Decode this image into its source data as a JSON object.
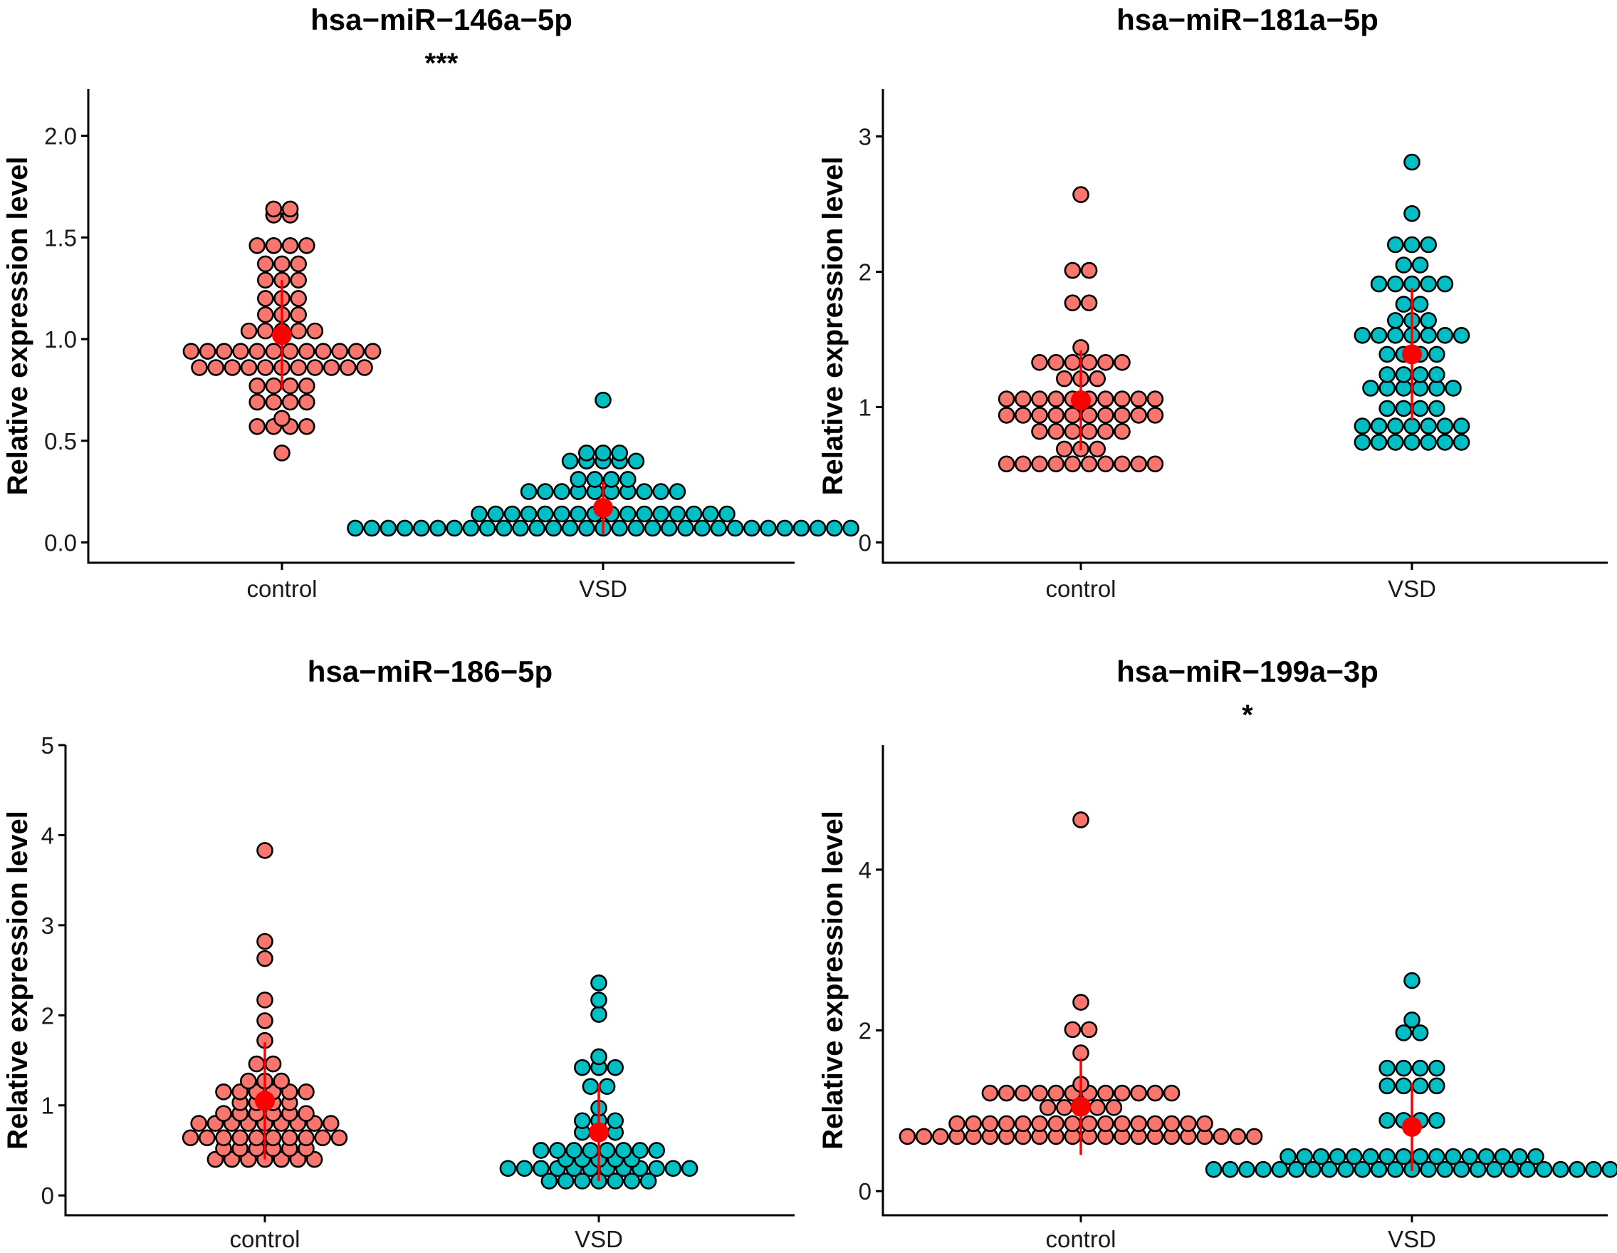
{
  "colors": {
    "control": "#F8766D",
    "VSD": "#00BFC4",
    "summary": "#FF0000"
  },
  "chart_data": [
    {
      "type": "scatter",
      "title": "hsa−miR−146a−5p",
      "significance": "***",
      "ylabel": "Relative expression level",
      "ylim": [
        -0.1,
        2.23
      ],
      "yticks": [
        0.0,
        0.5,
        1.0,
        1.5,
        2.0
      ],
      "yticklabels": [
        "0.0",
        "0.5",
        "1.0",
        "1.5",
        "2.0"
      ],
      "categories": [
        "control",
        "VSD"
      ],
      "dotsize": 0.039,
      "series": [
        {
          "name": "control",
          "mean": 1.02,
          "sd_low": 0.75,
          "sd_high": 1.29,
          "values": [
            0.44,
            0.57,
            0.57,
            0.57,
            0.57,
            0.61,
            0.69,
            0.69,
            0.69,
            0.69,
            0.77,
            0.77,
            0.77,
            0.77,
            0.86,
            0.86,
            0.86,
            0.86,
            0.86,
            0.86,
            0.86,
            0.86,
            0.86,
            0.86,
            0.86,
            0.94,
            0.94,
            0.94,
            0.94,
            0.94,
            0.94,
            0.94,
            0.94,
            0.94,
            0.94,
            0.94,
            0.94,
            1.04,
            1.04,
            1.04,
            1.04,
            1.04,
            1.12,
            1.12,
            1.12,
            1.2,
            1.2,
            1.2,
            1.29,
            1.29,
            1.29,
            1.37,
            1.37,
            1.37,
            1.46,
            1.46,
            1.46,
            1.46,
            1.61,
            1.61,
            1.64,
            1.64
          ]
        },
        {
          "name": "VSD",
          "mean": 0.17,
          "sd_low": 0.04,
          "sd_high": 0.3,
          "values": [
            0.07,
            0.07,
            0.07,
            0.07,
            0.07,
            0.07,
            0.07,
            0.07,
            0.07,
            0.07,
            0.07,
            0.07,
            0.07,
            0.07,
            0.07,
            0.07,
            0.07,
            0.07,
            0.07,
            0.07,
            0.07,
            0.07,
            0.07,
            0.07,
            0.07,
            0.07,
            0.07,
            0.07,
            0.07,
            0.07,
            0.07,
            0.14,
            0.14,
            0.14,
            0.14,
            0.14,
            0.14,
            0.14,
            0.14,
            0.14,
            0.14,
            0.14,
            0.14,
            0.14,
            0.14,
            0.14,
            0.14,
            0.25,
            0.25,
            0.25,
            0.25,
            0.25,
            0.25,
            0.25,
            0.25,
            0.25,
            0.25,
            0.31,
            0.31,
            0.31,
            0.31,
            0.4,
            0.4,
            0.4,
            0.4,
            0.4,
            0.44,
            0.44,
            0.44,
            0.7
          ]
        }
      ]
    },
    {
      "type": "scatter",
      "title": "hsa−miR−181a−5p",
      "significance": "",
      "ylabel": "Relative expression level",
      "ylim": [
        -0.15,
        3.35
      ],
      "yticks": [
        0,
        1,
        2,
        3
      ],
      "yticklabels": [
        "0",
        "1",
        "2",
        "3"
      ],
      "categories": [
        "control",
        "VSD"
      ],
      "dotsize": 0.058,
      "series": [
        {
          "name": "control",
          "mean": 1.05,
          "sd_low": 0.68,
          "sd_high": 1.42,
          "values": [
            0.58,
            0.58,
            0.58,
            0.58,
            0.58,
            0.58,
            0.58,
            0.58,
            0.58,
            0.58,
            0.69,
            0.69,
            0.69,
            0.82,
            0.82,
            0.82,
            0.82,
            0.82,
            0.82,
            0.94,
            0.94,
            0.94,
            0.94,
            0.94,
            0.94,
            0.94,
            0.94,
            0.94,
            0.94,
            1.06,
            1.06,
            1.06,
            1.06,
            1.06,
            1.06,
            1.06,
            1.06,
            1.06,
            1.06,
            1.21,
            1.21,
            1.21,
            1.33,
            1.33,
            1.33,
            1.33,
            1.33,
            1.33,
            1.44,
            1.77,
            1.77,
            2.01,
            2.01,
            2.57
          ]
        },
        {
          "name": "VSD",
          "mean": 1.39,
          "sd_low": 0.9,
          "sd_high": 1.88,
          "values": [
            0.74,
            0.74,
            0.74,
            0.74,
            0.74,
            0.74,
            0.74,
            0.86,
            0.86,
            0.86,
            0.86,
            0.86,
            0.86,
            0.86,
            0.99,
            0.99,
            0.99,
            0.99,
            1.14,
            1.14,
            1.14,
            1.14,
            1.14,
            1.14,
            1.24,
            1.24,
            1.24,
            1.24,
            1.39,
            1.39,
            1.39,
            1.39,
            1.53,
            1.53,
            1.53,
            1.53,
            1.53,
            1.53,
            1.53,
            1.64,
            1.64,
            1.64,
            1.76,
            1.76,
            1.91,
            1.91,
            1.91,
            1.91,
            1.91,
            2.05,
            2.05,
            2.2,
            2.2,
            2.2,
            2.43,
            2.81
          ]
        }
      ]
    },
    {
      "type": "scatter",
      "title": "hsa−miR−186−5p",
      "significance": "",
      "ylabel": "Relative expression level",
      "ylim": [
        -0.22,
        5.0
      ],
      "yticks": [
        0,
        1,
        2,
        3,
        4,
        5
      ],
      "yticklabels": [
        "0",
        "1",
        "2",
        "3",
        "4",
        "5"
      ],
      "categories": [
        "control",
        "VSD"
      ],
      "dotsize": 0.07,
      "series": [
        {
          "name": "control",
          "mean": 1.05,
          "sd_low": 0.4,
          "sd_high": 1.7,
          "values": [
            0.4,
            0.4,
            0.4,
            0.4,
            0.4,
            0.4,
            0.4,
            0.52,
            0.52,
            0.52,
            0.52,
            0.52,
            0.52,
            0.64,
            0.64,
            0.64,
            0.64,
            0.64,
            0.64,
            0.64,
            0.64,
            0.64,
            0.64,
            0.8,
            0.8,
            0.8,
            0.8,
            0.8,
            0.8,
            0.8,
            0.8,
            0.8,
            0.91,
            0.91,
            0.91,
            0.91,
            0.91,
            0.91,
            1.03,
            1.03,
            1.03,
            1.03,
            1.15,
            1.15,
            1.15,
            1.15,
            1.15,
            1.15,
            1.27,
            1.27,
            1.27,
            1.46,
            1.46,
            1.72,
            1.94,
            2.17,
            2.63,
            2.82,
            3.83
          ]
        },
        {
          "name": "VSD",
          "mean": 0.7,
          "sd_low": 0.16,
          "sd_high": 1.24,
          "values": [
            0.16,
            0.16,
            0.16,
            0.16,
            0.16,
            0.16,
            0.16,
            0.3,
            0.3,
            0.3,
            0.3,
            0.3,
            0.3,
            0.3,
            0.3,
            0.3,
            0.3,
            0.3,
            0.3,
            0.4,
            0.4,
            0.4,
            0.4,
            0.4,
            0.5,
            0.5,
            0.5,
            0.5,
            0.5,
            0.5,
            0.5,
            0.5,
            0.7,
            0.7,
            0.7,
            0.83,
            0.83,
            0.83,
            0.97,
            1.21,
            1.21,
            1.42,
            1.42,
            1.42,
            1.54,
            2.01,
            2.17,
            2.36
          ]
        }
      ]
    },
    {
      "type": "scatter",
      "title": "hsa−miR−199a−3p",
      "significance": "*",
      "ylabel": "Relative expression level",
      "ylim": [
        -0.3,
        5.55
      ],
      "yticks": [
        0,
        2,
        4
      ],
      "yticklabels": [
        "0",
        "2",
        "4"
      ],
      "categories": [
        "control",
        "VSD"
      ],
      "dotsize": 0.097,
      "series": [
        {
          "name": "control",
          "mean": 1.05,
          "sd_low": 0.45,
          "sd_high": 1.65,
          "values": [
            0.68,
            0.68,
            0.68,
            0.68,
            0.68,
            0.68,
            0.68,
            0.68,
            0.68,
            0.68,
            0.68,
            0.68,
            0.68,
            0.68,
            0.68,
            0.68,
            0.68,
            0.68,
            0.68,
            0.68,
            0.68,
            0.68,
            0.84,
            0.84,
            0.84,
            0.84,
            0.84,
            0.84,
            0.84,
            0.84,
            0.84,
            0.84,
            0.84,
            0.84,
            0.84,
            0.84,
            0.84,
            0.84,
            1.04,
            1.04,
            1.04,
            1.04,
            1.04,
            1.22,
            1.22,
            1.22,
            1.22,
            1.22,
            1.22,
            1.22,
            1.22,
            1.22,
            1.22,
            1.22,
            1.22,
            1.33,
            1.72,
            2.01,
            2.01,
            2.35,
            4.62
          ]
        },
        {
          "name": "VSD",
          "mean": 0.8,
          "sd_low": 0.25,
          "sd_high": 1.35,
          "values": [
            0.27,
            0.27,
            0.27,
            0.27,
            0.27,
            0.27,
            0.27,
            0.27,
            0.27,
            0.27,
            0.27,
            0.27,
            0.27,
            0.27,
            0.27,
            0.27,
            0.27,
            0.27,
            0.27,
            0.27,
            0.27,
            0.27,
            0.27,
            0.27,
            0.27,
            0.43,
            0.43,
            0.43,
            0.43,
            0.43,
            0.43,
            0.43,
            0.43,
            0.43,
            0.43,
            0.43,
            0.43,
            0.43,
            0.43,
            0.43,
            0.43,
            0.88,
            0.88,
            0.88,
            0.88,
            1.31,
            1.31,
            1.31,
            1.31,
            1.53,
            1.53,
            1.53,
            1.53,
            1.97,
            1.97,
            2.13,
            2.62
          ]
        }
      ]
    }
  ]
}
